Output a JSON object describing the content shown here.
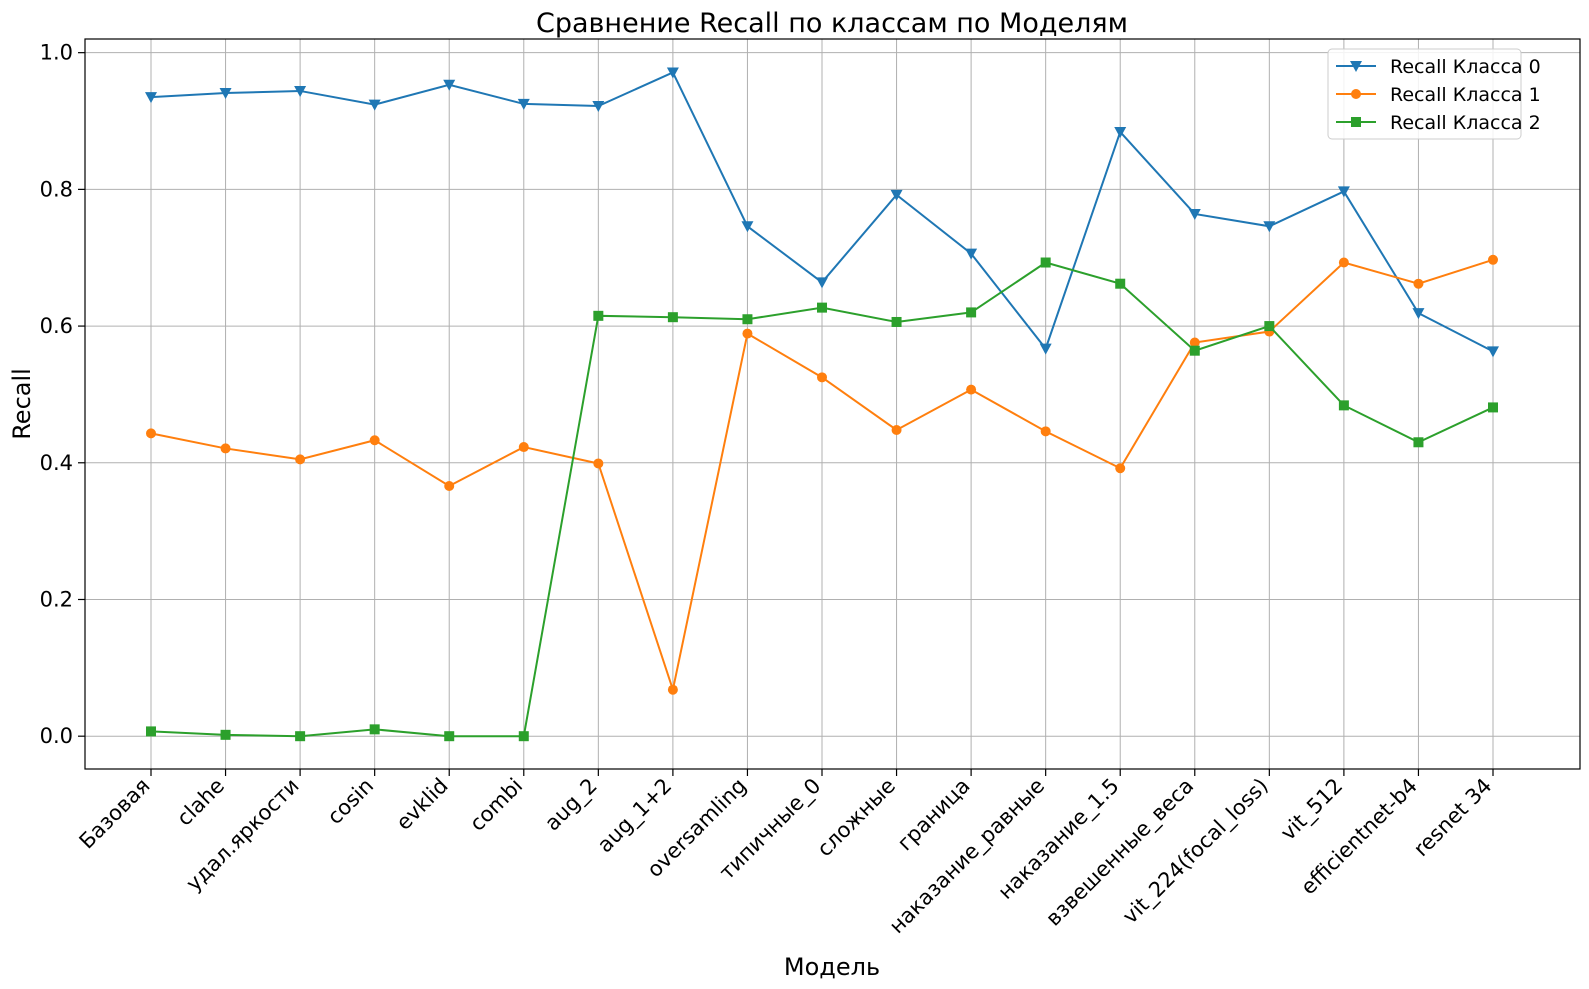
{
  "chart_data": {
    "type": "line",
    "title": "Сравнение Recall по классам по Моделям",
    "xlabel": "Модель",
    "ylabel": "Recall",
    "categories": [
      "Базовая",
      "clahe",
      "удал.яркости",
      "cosin",
      "evklid",
      "combi",
      "aug_2",
      "aug_1+2",
      "oversamling",
      "типичные_0",
      "сложные",
      "граница",
      "наказание_равные",
      "наказание_1.5",
      "взвешенные_веса",
      "vit_224(focal_loss)",
      "vit_512",
      "efficientnet-b4",
      "resnet 34"
    ],
    "series": [
      {
        "name": "Recall Класса 0",
        "color": "#1f77b4",
        "marker": "triangle-down",
        "values": [
          0.935,
          0.941,
          0.944,
          0.924,
          0.953,
          0.925,
          0.922,
          0.971,
          0.746,
          0.664,
          0.792,
          0.706,
          0.567,
          0.884,
          0.764,
          0.746,
          0.797,
          0.619,
          0.563
        ]
      },
      {
        "name": "Recall Класса 1",
        "color": "#ff7f0e",
        "marker": "circle",
        "values": [
          0.443,
          0.421,
          0.405,
          0.433,
          0.366,
          0.423,
          0.399,
          0.068,
          0.589,
          0.525,
          0.448,
          0.507,
          0.446,
          0.392,
          0.576,
          0.592,
          0.693,
          0.662,
          0.697
        ]
      },
      {
        "name": "Recall Класса 2",
        "color": "#2ca02c",
        "marker": "square",
        "values": [
          0.007,
          0.002,
          0.0,
          0.01,
          0.0,
          0.0,
          0.615,
          0.613,
          0.61,
          0.627,
          0.606,
          0.62,
          0.693,
          0.662,
          0.564,
          0.6,
          0.484,
          0.43,
          0.481
        ]
      }
    ],
    "yticks": [
      "0.0",
      "0.2",
      "0.4",
      "0.6",
      "0.8",
      "1.0"
    ],
    "ylim": [
      -0.048,
      1.02
    ],
    "grid": true,
    "legend_position": "top-right"
  }
}
